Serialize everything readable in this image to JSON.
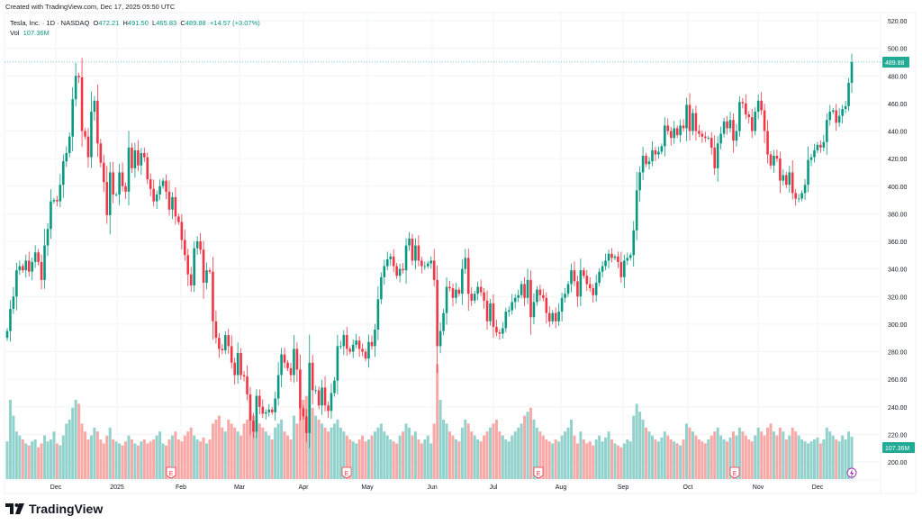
{
  "header": {
    "created": "Created with TradingView.com, Dec 17, 2025 05:50 UTC",
    "symbol": "Tesla, Inc. · 1D · NASDAQ",
    "o_label": "O",
    "o": "472.21",
    "h_label": "H",
    "h": "491.50",
    "l_label": "L",
    "l": "465.83",
    "c_label": "C",
    "c": "489.88",
    "change": "+14.57 (+3.07%)",
    "vol_label": "Vol",
    "vol": "107.36M"
  },
  "branding": {
    "logo_text": "TradingView"
  },
  "colors": {
    "up": "#089981",
    "down": "#f23645",
    "vol_up": "#92d2cc",
    "vol_down": "#f7a9a7",
    "tag": "#22ab94",
    "earnings": "#f23645",
    "dividend": "#9c27b0"
  },
  "chart_data": {
    "type": "candlestick",
    "title": "Tesla, Inc. · 1D · NASDAQ",
    "price_axis": {
      "ticks": [
        "520.00",
        "500.00",
        "480.00",
        "460.00",
        "440.00",
        "420.00",
        "400.00",
        "380.00",
        "360.00",
        "340.00",
        "320.00",
        "300.00",
        "280.00",
        "260.00",
        "240.00",
        "220.00",
        "200.00"
      ],
      "ylim": [
        200,
        520
      ]
    },
    "time_axis": {
      "ticks": [
        "Dec",
        "2025",
        "Feb",
        "Mar",
        "Apr",
        "May",
        "Jun",
        "Jul",
        "Aug",
        "Sep",
        "Oct",
        "Nov",
        "Dec"
      ]
    },
    "last_price_label": "489.88",
    "last_volume_label": "107.36M",
    "earnings_marker": "E",
    "first_open": 290,
    "closes": [
      295,
      311,
      320,
      339,
      342,
      339,
      346,
      338,
      345,
      352,
      345,
      332,
      357,
      369,
      389,
      390,
      389,
      401,
      418,
      424,
      436,
      463,
      480,
      479,
      440,
      436,
      421,
      454,
      462,
      431,
      417,
      403,
      379,
      410,
      394,
      394,
      410,
      400,
      396,
      428,
      413,
      426,
      415,
      424,
      421,
      405,
      398,
      389,
      394,
      400,
      404,
      396,
      383,
      392,
      378,
      374,
      361,
      350,
      336,
      328,
      355,
      360,
      354,
      330,
      339,
      338,
      302,
      290,
      282,
      281,
      292,
      284,
      272,
      263,
      279,
      263,
      262,
      249,
      230,
      222,
      248,
      240,
      235,
      236,
      238,
      236,
      246,
      263,
      278,
      272,
      268,
      263,
      282,
      267,
      239,
      233,
      221,
      272,
      252,
      252,
      241,
      254,
      241,
      237,
      250,
      259,
      284,
      284,
      292,
      282,
      280,
      285,
      288,
      282,
      280,
      275,
      287,
      284,
      296,
      318,
      334,
      342,
      347,
      349,
      342,
      335,
      340,
      339,
      357,
      362,
      346,
      357,
      346,
      342,
      342,
      344,
      346,
      332,
      284,
      295,
      308,
      327,
      326,
      319,
      325,
      322,
      340,
      348,
      322,
      317,
      322,
      327,
      323,
      317,
      302,
      315,
      298,
      294,
      293,
      297,
      309,
      310,
      316,
      319,
      321,
      329,
      319,
      332,
      305,
      316,
      325,
      321,
      319,
      308,
      302,
      308,
      302,
      309,
      319,
      322,
      329,
      339,
      331,
      320,
      339,
      335,
      329,
      326,
      321,
      330,
      338,
      342,
      346,
      351,
      348,
      349,
      345,
      334,
      346,
      348,
      350,
      368,
      397,
      410,
      422,
      416,
      418,
      426,
      423,
      425,
      429,
      444,
      440,
      435,
      442,
      437,
      444,
      442,
      459,
      440,
      453,
      440,
      438,
      436,
      435,
      435,
      428,
      413,
      431,
      438,
      447,
      442,
      448,
      433,
      440,
      461,
      460,
      452,
      450,
      440,
      454,
      462,
      455,
      440,
      423,
      415,
      422,
      420,
      404,
      408,
      401,
      410,
      395,
      391,
      391,
      395,
      401,
      419,
      421,
      426,
      430,
      428,
      432,
      448,
      454,
      455,
      446,
      451,
      456,
      458,
      475,
      490
    ],
    "volumes": [
      95,
      200,
      160,
      120,
      110,
      100,
      90,
      85,
      95,
      100,
      80,
      90,
      110,
      95,
      100,
      120,
      90,
      85,
      110,
      140,
      150,
      180,
      200,
      190,
      140,
      120,
      100,
      110,
      130,
      120,
      100,
      90,
      110,
      130,
      100,
      95,
      90,
      85,
      95,
      110,
      100,
      90,
      85,
      95,
      100,
      90,
      95,
      100,
      110,
      120,
      90,
      85,
      100,
      110,
      120,
      100,
      95,
      110,
      120,
      130,
      110,
      100,
      95,
      105,
      90,
      100,
      140,
      150,
      160,
      130,
      120,
      150,
      140,
      130,
      120,
      110,
      140,
      150,
      170,
      160,
      150,
      140,
      130,
      120,
      110,
      100,
      130,
      140,
      150,
      120,
      110,
      100,
      160,
      140,
      180,
      200,
      210,
      220,
      180,
      160,
      150,
      140,
      130,
      120,
      130,
      140,
      150,
      130,
      120,
      110,
      100,
      95,
      90,
      100,
      110,
      95,
      100,
      110,
      120,
      130,
      140,
      120,
      110,
      100,
      95,
      90,
      110,
      120,
      140,
      130,
      110,
      120,
      100,
      90,
      100,
      110,
      90,
      140,
      290,
      200,
      150,
      140,
      120,
      110,
      100,
      95,
      130,
      150,
      140,
      120,
      110,
      100,
      95,
      110,
      120,
      130,
      140,
      150,
      120,
      110,
      100,
      95,
      110,
      120,
      130,
      140,
      160,
      170,
      180,
      150,
      130,
      120,
      110,
      100,
      95,
      90,
      100,
      95,
      110,
      120,
      130,
      150,
      110,
      90,
      120,
      100,
      90,
      95,
      85,
      100,
      110,
      95,
      105,
      120,
      100,
      90,
      85,
      80,
      90,
      100,
      95,
      160,
      190,
      170,
      150,
      130,
      120,
      110,
      100,
      95,
      105,
      120,
      110,
      100,
      95,
      90,
      85,
      100,
      140,
      130,
      120,
      110,
      100,
      95,
      90,
      100,
      110,
      120,
      130,
      110,
      100,
      95,
      105,
      120,
      110,
      130,
      120,
      110,
      100,
      95,
      110,
      130,
      120,
      110,
      130,
      140,
      120,
      110,
      130,
      120,
      100,
      110,
      130,
      120,
      110,
      100,
      95,
      90,
      95,
      100,
      105,
      90,
      100,
      130,
      120,
      110,
      100,
      95,
      110,
      100,
      120,
      107.36
    ]
  }
}
